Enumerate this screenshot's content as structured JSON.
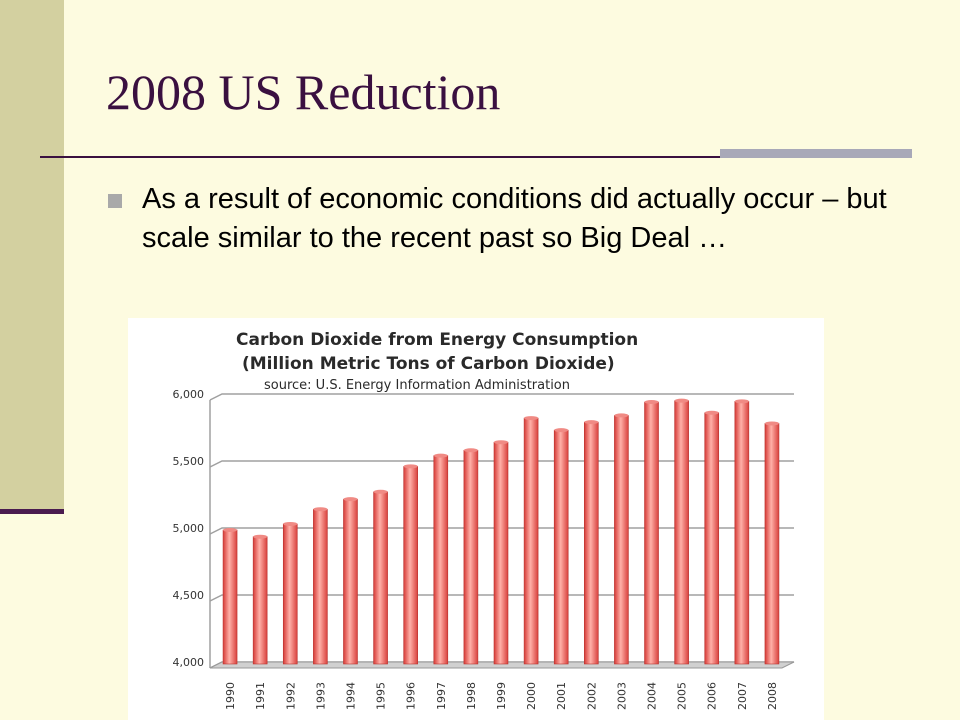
{
  "slide": {
    "title": "2008 US Reduction",
    "bullet": "As a result of economic conditions did actually occur – but scale similar to the recent past so Big Deal …"
  },
  "colors": {
    "background": "#fdfbe0",
    "sidebar": "#d3d0a0",
    "title": "#3a1040",
    "bar": "#e8504c"
  },
  "chart_data": {
    "type": "bar",
    "title": "Carbon Dioxide from Energy Consumption",
    "subtitle": "(Million Metric Tons of Carbon Dioxide)",
    "source": "source: U.S. Energy Information Administration",
    "categories": [
      "1990",
      "1991",
      "1992",
      "1993",
      "1994",
      "1995",
      "1996",
      "1997",
      "1998",
      "1999",
      "2000",
      "2001",
      "2002",
      "2003",
      "2004",
      "2005",
      "2006",
      "2007",
      "2008"
    ],
    "values": [
      5015,
      4965,
      5060,
      5170,
      5245,
      5300,
      5490,
      5570,
      5610,
      5670,
      5850,
      5760,
      5820,
      5870,
      5970,
      5980,
      5890,
      5975,
      5810
    ],
    "ylim": [
      4000,
      6000
    ],
    "yticks": [
      "4,000",
      "4,500",
      "5,000",
      "5,500",
      "6,000"
    ],
    "grid": true,
    "legend": "none"
  }
}
